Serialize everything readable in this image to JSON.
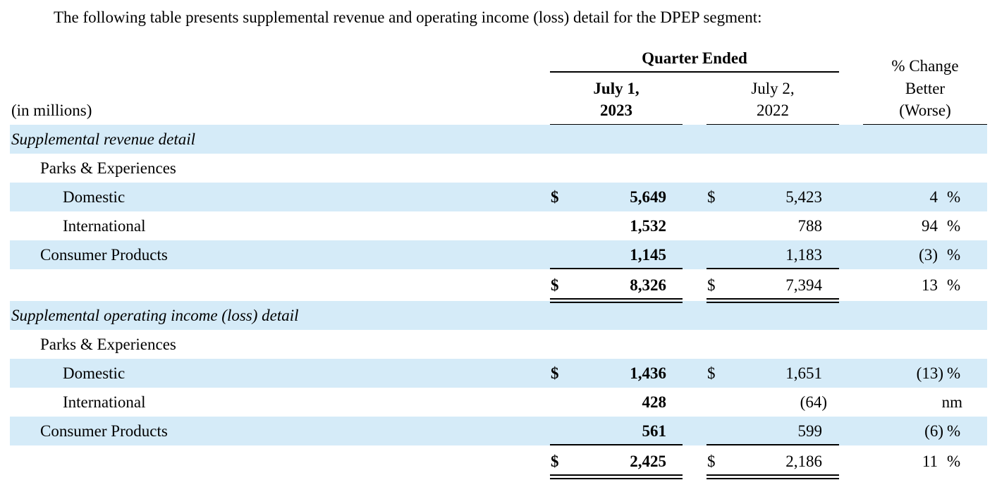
{
  "intro": "The following table presents supplemental revenue and operating income (loss) detail for the DPEP segment:",
  "header": {
    "units": "(in millions)",
    "group_label": "Quarter Ended",
    "col1_line1": "July 1,",
    "col1_line2": "2023",
    "col2_line1": "July 2,",
    "col2_line2": "2022",
    "col3_line1": "% Change",
    "col3_line2": "Better",
    "col3_line3": "(Worse)"
  },
  "revenue": {
    "section_title": "Supplemental revenue detail",
    "group": "Parks & Experiences",
    "rows": [
      {
        "label": "Domestic",
        "cur_sign": "$",
        "cur": "5,649",
        "prior_sign": "$",
        "prior": "5,423",
        "change": "4",
        "change_unit": "%"
      },
      {
        "label": "International",
        "cur_sign": "",
        "cur": "1,532",
        "prior_sign": "",
        "prior": "788",
        "change": "94",
        "change_unit": "%"
      },
      {
        "label": "Consumer Products",
        "cur_sign": "",
        "cur": "1,145",
        "prior_sign": "",
        "prior": "1,183",
        "change": "(3)",
        "change_unit": "%"
      }
    ],
    "total": {
      "cur_sign": "$",
      "cur": "8,326",
      "prior_sign": "$",
      "prior": "7,394",
      "change": "13",
      "change_unit": "%"
    }
  },
  "income": {
    "section_title": "Supplemental operating income (loss) detail",
    "group": "Parks & Experiences",
    "rows": [
      {
        "label": "Domestic",
        "cur_sign": "$",
        "cur": "1,436",
        "prior_sign": "$",
        "prior": "1,651",
        "change": "(13)",
        "change_unit": "%"
      },
      {
        "label": "International",
        "cur_sign": "",
        "cur": "428",
        "prior_sign": "",
        "prior": "(64)",
        "change": "nm",
        "change_unit": ""
      },
      {
        "label": "Consumer Products",
        "cur_sign": "",
        "cur": "561",
        "prior_sign": "",
        "prior": "599",
        "change": "(6)",
        "change_unit": "%"
      }
    ],
    "total": {
      "cur_sign": "$",
      "cur": "2,425",
      "prior_sign": "$",
      "prior": "2,186",
      "change": "11",
      "change_unit": "%"
    }
  },
  "colors": {
    "band": "#d5ebf8",
    "text": "#000000"
  }
}
